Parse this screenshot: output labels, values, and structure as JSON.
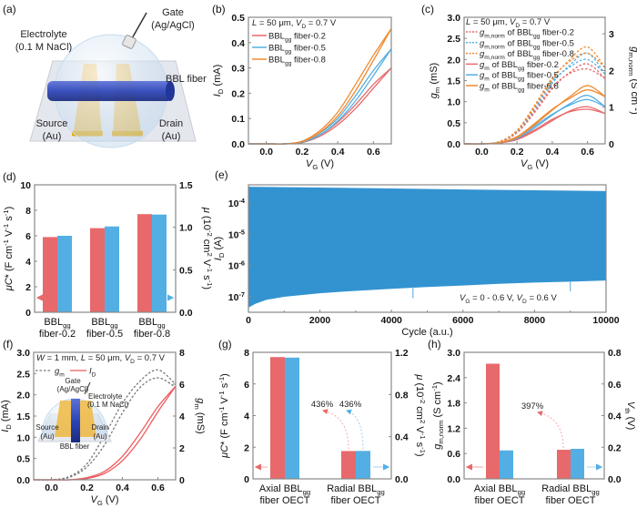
{
  "panel_a": {
    "panel_label": "(a)",
    "gate": [
      "Gate",
      "(Ag/AgCl)"
    ],
    "electrolyte": [
      "Electrolyte",
      "(0.1 M NaCl)"
    ],
    "fiber": "BBL fiber",
    "source": [
      "Source",
      "(Au)"
    ],
    "drain": [
      "Drain",
      "(Au)"
    ],
    "colors": {
      "fiber": "#2c44b8",
      "electrode": "#f0b840",
      "substrate": "#e4e7ee",
      "electrolyte": "#cfe2f3"
    }
  },
  "panel_f_inset": {
    "gate": [
      "Gate",
      "(Ag/AgCl)"
    ],
    "electrolyte": [
      "Electrolyte",
      "(0.1 M NaCl)"
    ],
    "fiber": "BBL fiber",
    "source": [
      "Source",
      "(Au)"
    ],
    "drain": [
      "Drain",
      "(Au)"
    ]
  },
  "chart_data": [
    {
      "id": "b",
      "panel_label": "(b)",
      "type": "line",
      "xlabel": "*V*_{G} (V)",
      "ylabel": "*I*_{D} (mA)",
      "xlim": [
        -0.1,
        0.7
      ],
      "ylim": [
        0,
        0.5
      ],
      "xticks": [
        "0.0",
        "0.2",
        "0.4",
        "0.6"
      ],
      "yticks": [
        "0.0",
        "0.1",
        "0.2",
        "0.3",
        "0.4",
        "0.5"
      ],
      "annotation": "*L* = 50 μm, *V*_{D} = 0.7 V",
      "legend_position": "top-left",
      "x": [
        -0.1,
        0,
        0.1,
        0.2,
        0.3,
        0.4,
        0.5,
        0.6,
        0.7
      ],
      "series": [
        {
          "name": "BBL_{gg} fiber-0.2",
          "color": "#e8696b",
          "axis": "left",
          "dashed": false,
          "sweeps": [
            [
              0,
              0,
              0,
              0.005,
              0.03,
              0.075,
              0.14,
              0.22,
              0.3
            ],
            [
              0,
              0,
              0,
              0.007,
              0.035,
              0.085,
              0.155,
              0.235,
              0.3
            ]
          ]
        },
        {
          "name": "BBL_{gg} fiber-0.5",
          "color": "#53afe3",
          "axis": "left",
          "dashed": false,
          "sweeps": [
            [
              0,
              0,
              0,
              0.006,
              0.035,
              0.09,
              0.17,
              0.27,
              0.375
            ],
            [
              0,
              0,
              0,
              0.008,
              0.042,
              0.1,
              0.19,
              0.29,
              0.375
            ]
          ]
        },
        {
          "name": "BBL_{gg} fiber-0.8",
          "color": "#f08a30",
          "axis": "left",
          "dashed": false,
          "sweeps": [
            [
              0,
              0,
              0,
              0.008,
              0.045,
              0.11,
              0.21,
              0.33,
              0.455
            ],
            [
              0,
              0,
              0,
              0.01,
              0.052,
              0.125,
              0.235,
              0.35,
              0.455
            ]
          ]
        }
      ]
    },
    {
      "id": "c",
      "panel_label": "(c)",
      "type": "line",
      "xlabel": "*V*_{G} (V)",
      "ylabel": "*g*_{m} (mS)",
      "ylabel_right": "*g*_{m,norm} (S cm^{-1})",
      "xlim": [
        -0.1,
        0.7
      ],
      "ylim": [
        0,
        3.0
      ],
      "ylim_right": [
        0,
        3.45
      ],
      "xticks": [
        "0.0",
        "0.2",
        "0.4",
        "0.6"
      ],
      "yticks": [
        "0.0",
        "0.5",
        "1.0",
        "1.5",
        "2.0",
        "2.5",
        "3.0"
      ],
      "yticks_right": [
        "0",
        "1",
        "2",
        "3"
      ],
      "annotation": "*L* = 50 μm, *V*_{D} = 0.7 V",
      "legend_position": "top-left",
      "x": [
        -0.1,
        0,
        0.1,
        0.2,
        0.3,
        0.4,
        0.5,
        0.6,
        0.7
      ],
      "series": [
        {
          "name": "*g*_{m,norm} of BBL_{gg} fiber-0.2",
          "color": "#e8696b",
          "axis": "right",
          "dashed": true,
          "sweeps": [
            [
              0,
              0,
              0.05,
              0.3,
              0.85,
              1.5,
              1.95,
              2.18,
              1.78
            ],
            [
              0,
              0,
              0.05,
              0.32,
              0.9,
              1.55,
              1.92,
              2.04,
              1.78
            ]
          ]
        },
        {
          "name": "*g*_{m,norm} of BBL_{gg} fiber-0.5",
          "color": "#53afe3",
          "axis": "right",
          "dashed": true,
          "sweeps": [
            [
              0,
              0,
              0.06,
              0.33,
              0.95,
              1.65,
              2.15,
              2.47,
              1.9
            ],
            [
              0,
              0,
              0.06,
              0.35,
              1.0,
              1.7,
              2.1,
              2.3,
              1.9
            ]
          ]
        },
        {
          "name": "*g*_{m,norm} of BBL_{gg} fiber-0.8",
          "color": "#f08a30",
          "axis": "right",
          "dashed": true,
          "sweeps": [
            [
              0,
              0,
              0.06,
              0.35,
              1.0,
              1.75,
              2.3,
              2.64,
              2.07
            ],
            [
              0,
              0,
              0.06,
              0.37,
              1.05,
              1.8,
              2.25,
              2.47,
              2.07
            ]
          ]
        },
        {
          "name": "*g*_{m} of BBL_{gg} fiber-0.2",
          "color": "#e8696b",
          "axis": "left",
          "dashed": false,
          "sweeps": [
            [
              0,
              0,
              0.02,
              0.1,
              0.3,
              0.55,
              0.78,
              0.88,
              0.72
            ],
            [
              0,
              0,
              0.02,
              0.12,
              0.33,
              0.58,
              0.76,
              0.82,
              0.72
            ]
          ]
        },
        {
          "name": "*g*_{m} of BBL_{gg} fiber-0.5",
          "color": "#53afe3",
          "axis": "left",
          "dashed": false,
          "sweeps": [
            [
              0,
              0,
              0.03,
              0.13,
              0.38,
              0.68,
              0.95,
              1.15,
              0.88
            ],
            [
              0,
              0,
              0.03,
              0.15,
              0.42,
              0.7,
              0.92,
              1.05,
              0.88
            ]
          ]
        },
        {
          "name": "*g*_{m} of BBL_{gg} fiber-0.8",
          "color": "#f08a30",
          "axis": "left",
          "dashed": false,
          "sweeps": [
            [
              0,
              0,
              0.03,
              0.15,
              0.45,
              0.8,
              1.12,
              1.38,
              1.12
            ],
            [
              0,
              0,
              0.03,
              0.17,
              0.48,
              0.82,
              1.08,
              1.28,
              1.12
            ]
          ]
        }
      ]
    },
    {
      "id": "d",
      "panel_label": "(d)",
      "type": "bar",
      "ylabel": "*μC** (F cm^{-1} V^{-1} s^{-1})",
      "ylabel_right": "*μ* (10^{-2} cm^{2} V^{-1} s^{-1})",
      "ylim": [
        0,
        10
      ],
      "ylim_right": [
        0,
        1.5
      ],
      "yticks": [
        "0",
        "2",
        "4",
        "6",
        "8",
        "10"
      ],
      "yticks_right": [
        "0.0",
        "0.5",
        "1.0",
        "1.5"
      ],
      "categories": [
        [
          "BBL_{gg}",
          "fiber-0.2"
        ],
        [
          "BBL_{gg}",
          "fiber-0.5"
        ],
        [
          "BBL_{gg}",
          "fiber-0.8"
        ]
      ],
      "series": [
        {
          "axis": "left",
          "color": "#e8696b",
          "values": [
            5.9,
            6.6,
            7.7
          ]
        },
        {
          "axis": "right",
          "color": "#53afe3",
          "values": [
            0.9,
            1.01,
            1.15
          ]
        }
      ]
    },
    {
      "id": "e",
      "panel_label": "(e)",
      "type": "area",
      "xlabel": "Cycle (a.u.)",
      "ylabel": "*I*_{D} (A)",
      "xlim": [
        0,
        10000
      ],
      "ylim": [
        3.2e-08,
        0.00038
      ],
      "yscale": "log",
      "xticks": [
        "0",
        "2000",
        "4000",
        "6000",
        "8000",
        "10000"
      ],
      "yticks": [
        "10^{-7}",
        "10^{-6}",
        "10^{-5}",
        "10^{-4}"
      ],
      "annotation": "*V*_{G} = 0 - 0.6 V, *V*_{D} = 0.6 V",
      "color": "#3393d1",
      "upper": [
        [
          0,
          0.00033
        ],
        [
          2000,
          0.00031
        ],
        [
          4000,
          0.00029
        ],
        [
          6000,
          0.00027
        ],
        [
          8000,
          0.000255
        ],
        [
          10000,
          0.00024
        ]
      ],
      "lower": [
        [
          0,
          4.5e-08
        ],
        [
          200,
          6e-08
        ],
        [
          500,
          8e-08
        ],
        [
          1000,
          1e-07
        ],
        [
          2000,
          1.3e-07
        ],
        [
          3000,
          1.55e-07
        ],
        [
          4000,
          1.8e-07
        ],
        [
          5000,
          2.05e-07
        ],
        [
          6000,
          2.3e-07
        ],
        [
          7000,
          2.6e-07
        ],
        [
          8000,
          2.85e-07
        ],
        [
          9000,
          3.05e-07
        ],
        [
          10000,
          3.3e-07
        ]
      ],
      "spikes": [
        [
          4600,
          9e-08
        ],
        [
          9000,
          1.5e-07
        ]
      ]
    },
    {
      "id": "f",
      "panel_label": "(f)",
      "type": "line",
      "xlabel": "*V*_{G} (V)",
      "ylabel": "*I*_{D} (mA)",
      "ylabel_right": "*g*_{m} (mS)",
      "xlim": [
        -0.1,
        0.7
      ],
      "ylim": [
        0,
        3.0
      ],
      "ylim_right": [
        0,
        8
      ],
      "xticks": [
        "0.0",
        "0.2",
        "0.4",
        "0.6"
      ],
      "yticks": [
        "0.0",
        "0.5",
        "1.0",
        "1.5",
        "2.0",
        "2.5",
        "3.0"
      ],
      "yticks_right": [
        "0",
        "2",
        "4",
        "6",
        "8"
      ],
      "annotation": "*W* = 1 mm, *L* = 50 μm, *V*_{D} = 0.7 V",
      "legend_position": "top-left",
      "x": [
        -0.1,
        0,
        0.1,
        0.2,
        0.3,
        0.4,
        0.5,
        0.6,
        0.7
      ],
      "series": [
        {
          "name": "*g*_{m}",
          "color": "#777777",
          "axis": "right",
          "dashed": true,
          "sweeps": [
            [
              0,
              0,
              0.2,
              1.0,
              2.8,
              4.8,
              6.2,
              6.9,
              6.0
            ],
            [
              0,
              0,
              0.15,
              0.8,
              2.2,
              4.2,
              5.8,
              6.4,
              5.8
            ]
          ]
        },
        {
          "name": "*I*_{D}",
          "color": "#ee5a5c",
          "axis": "left",
          "dashed": false,
          "sweeps": [
            [
              0,
              0,
              0,
              0.03,
              0.15,
              0.45,
              0.95,
              1.6,
              2.2
            ],
            [
              0,
              0,
              0,
              0.05,
              0.2,
              0.55,
              1.1,
              1.72,
              2.2
            ]
          ]
        }
      ]
    },
    {
      "id": "g",
      "panel_label": "(g)",
      "type": "bar",
      "ylabel": "*μC** (F cm^{-1} V^{-1} s^{-1})",
      "ylabel_right": "*μ* (10^{-2} cm^{2} V^{-1} s^{-1})",
      "ylim": [
        0,
        8
      ],
      "ylim_right": [
        0,
        1.2
      ],
      "yticks": [
        "0",
        "2",
        "4",
        "6",
        "8"
      ],
      "yticks_right": [
        "0.0",
        "0.4",
        "0.8",
        "1.2"
      ],
      "categories": [
        [
          "Axial BBL_{gg}",
          "fiber OECT"
        ],
        [
          "Radial BBL_{gg}",
          "fiber OECT"
        ]
      ],
      "series": [
        {
          "axis": "left",
          "color": "#e8696b",
          "values": [
            7.7,
            1.76
          ]
        },
        {
          "axis": "right",
          "color": "#53afe3",
          "values": [
            1.15,
            0.265
          ]
        }
      ],
      "annotations": [
        {
          "text": "436%",
          "color": "#e8696b"
        },
        {
          "text": "436%",
          "color": "#53afe3"
        }
      ]
    },
    {
      "id": "h",
      "panel_label": "(h)",
      "type": "bar",
      "ylabel": "*g*_{m,norm} (S cm^{-1})",
      "ylabel_right": "*V*_{th} (V)",
      "ylim": [
        0,
        3.0
      ],
      "ylim_right": [
        0,
        0.8
      ],
      "yticks": [
        "0.0",
        "0.6",
        "1.2",
        "1.8",
        "2.4",
        "3.0"
      ],
      "yticks_right": [
        "0.0",
        "0.2",
        "0.4",
        "0.6",
        "0.8"
      ],
      "categories": [
        [
          "Axial BBL_{gg}",
          "fiber OECT"
        ],
        [
          "Radial BBL_{gg}",
          "fiber OECT"
        ]
      ],
      "series": [
        {
          "axis": "left",
          "color": "#e8696b",
          "values": [
            2.73,
            0.69
          ]
        },
        {
          "axis": "right",
          "color": "#53afe3",
          "values": [
            0.18,
            0.19
          ]
        }
      ],
      "annotations": [
        {
          "text": "397%",
          "color": "#e8696b"
        }
      ]
    }
  ]
}
